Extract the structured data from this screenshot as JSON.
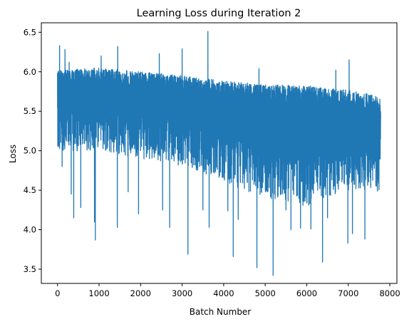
{
  "chart_data": {
    "type": "line",
    "title": "Learning Loss during Iteration 2",
    "xlabel": "Batch Number",
    "ylabel": "Loss",
    "xlim": [
      -390,
      8170
    ],
    "ylim": [
      3.32,
      6.62
    ],
    "xticks": [
      0,
      1000,
      2000,
      3000,
      4000,
      5000,
      6000,
      7000,
      8000
    ],
    "xtick_labels": [
      "0",
      "1000",
      "2000",
      "3000",
      "4000",
      "5000",
      "6000",
      "7000",
      "8000"
    ],
    "yticks": [
      3.5,
      4.0,
      4.5,
      5.0,
      5.5,
      6.0,
      6.5
    ],
    "ytick_labels": [
      "3.5",
      "4.0",
      "4.5",
      "5.0",
      "5.5",
      "6.0",
      "6.5"
    ],
    "grid": false,
    "color": "#1f77b4",
    "n_points": 7780,
    "trend": [
      {
        "x": 0,
        "high": 6.1,
        "mid": 5.8,
        "low": 5.0
      },
      {
        "x": 1000,
        "high": 6.15,
        "mid": 5.8,
        "low": 5.0
      },
      {
        "x": 2000,
        "high": 6.1,
        "mid": 5.75,
        "low": 4.9
      },
      {
        "x": 3000,
        "high": 6.05,
        "mid": 5.7,
        "low": 4.8
      },
      {
        "x": 4000,
        "high": 6.0,
        "mid": 5.6,
        "low": 4.6
      },
      {
        "x": 5000,
        "high": 5.95,
        "mid": 5.55,
        "low": 4.4
      },
      {
        "x": 6000,
        "high": 5.95,
        "mid": 5.5,
        "low": 4.3
      },
      {
        "x": 7000,
        "high": 5.9,
        "mid": 5.45,
        "low": 4.5
      },
      {
        "x": 7780,
        "high": 5.8,
        "mid": 5.4,
        "low": 4.5
      }
    ],
    "spikes": [
      {
        "x": 20,
        "y": 5.05
      },
      {
        "x": 50,
        "y": 6.33
      },
      {
        "x": 110,
        "y": 4.8
      },
      {
        "x": 180,
        "y": 6.28
      },
      {
        "x": 280,
        "y": 6.12
      },
      {
        "x": 330,
        "y": 4.45
      },
      {
        "x": 390,
        "y": 4.15
      },
      {
        "x": 470,
        "y": 5.0
      },
      {
        "x": 560,
        "y": 4.28
      },
      {
        "x": 890,
        "y": 4.1
      },
      {
        "x": 910,
        "y": 3.87
      },
      {
        "x": 1050,
        "y": 6.2
      },
      {
        "x": 1440,
        "y": 4.03
      },
      {
        "x": 1450,
        "y": 6.32
      },
      {
        "x": 1700,
        "y": 4.48
      },
      {
        "x": 1950,
        "y": 4.2
      },
      {
        "x": 2450,
        "y": 6.23
      },
      {
        "x": 2530,
        "y": 4.25
      },
      {
        "x": 2700,
        "y": 4.03
      },
      {
        "x": 3000,
        "y": 6.29
      },
      {
        "x": 3140,
        "y": 3.69
      },
      {
        "x": 3500,
        "y": 4.25
      },
      {
        "x": 3620,
        "y": 6.51
      },
      {
        "x": 3650,
        "y": 4.03
      },
      {
        "x": 4100,
        "y": 4.24
      },
      {
        "x": 4230,
        "y": 3.66
      },
      {
        "x": 4350,
        "y": 4.13
      },
      {
        "x": 4800,
        "y": 3.52
      },
      {
        "x": 4850,
        "y": 6.04
      },
      {
        "x": 5050,
        "y": 4.48
      },
      {
        "x": 5190,
        "y": 3.42
      },
      {
        "x": 5500,
        "y": 4.25
      },
      {
        "x": 5620,
        "y": 4.0
      },
      {
        "x": 5850,
        "y": 4.02
      },
      {
        "x": 6100,
        "y": 4.01
      },
      {
        "x": 6380,
        "y": 3.59
      },
      {
        "x": 6500,
        "y": 4.15
      },
      {
        "x": 6700,
        "y": 6.02
      },
      {
        "x": 6990,
        "y": 3.83
      },
      {
        "x": 7020,
        "y": 6.15
      },
      {
        "x": 7100,
        "y": 3.95
      },
      {
        "x": 7400,
        "y": 3.88
      },
      {
        "x": 7700,
        "y": 4.49
      }
    ]
  }
}
